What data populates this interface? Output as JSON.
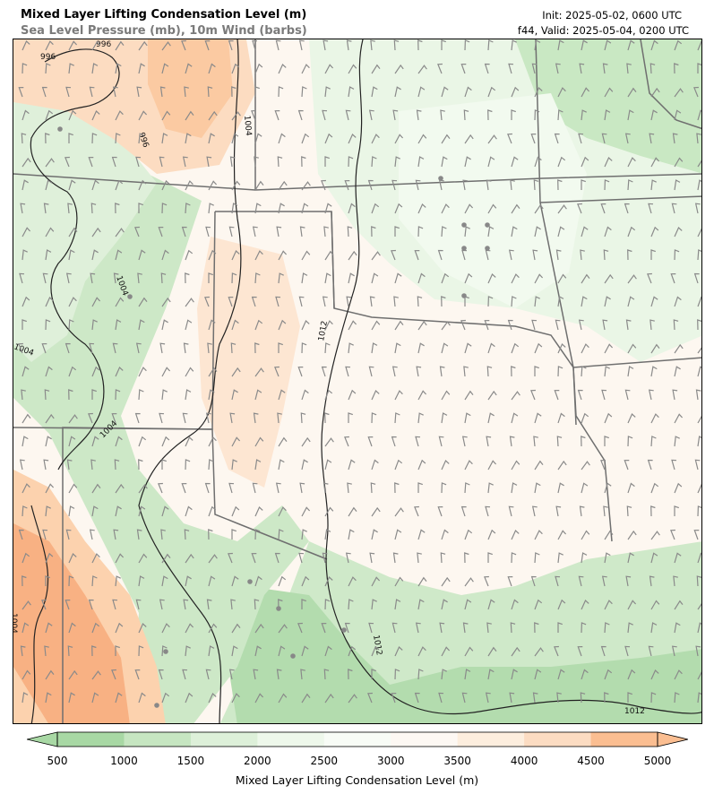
{
  "header": {
    "title": "Mixed Layer Lifting Condensation Level (m)",
    "subtitle": "Sea Level Pressure (mb), 10m Wind (barbs)",
    "init": "Init: 2025-05-02, 0600 UTC",
    "valid": "f44, Valid: 2025-05-04, 0200 UTC"
  },
  "map": {
    "field": "Mixed Layer Lifting Condensation Level",
    "units": "m",
    "isobar_labels": [
      "996",
      "996",
      "996",
      "1004",
      "1004",
      "1004",
      "1004",
      "1012",
      "1012",
      "1004",
      "1012"
    ],
    "colors": {
      "low_lcl": "#a9d9a8",
      "mid_lcl": "#f4faf1",
      "high_lcl": "#fbbf8f",
      "isobar": "#222222",
      "state_border": "#777777",
      "county_border": "#cccccc",
      "barb": "#888888"
    }
  },
  "colorbar": {
    "label": "Mixed Layer Lifting Condensation Level (m)",
    "ticks": [
      "500",
      "1000",
      "1500",
      "2000",
      "2500",
      "3000",
      "3500",
      "4000",
      "4500",
      "5000"
    ],
    "colors": [
      "#a8d8a4",
      "#c6e6c1",
      "#ddf0d9",
      "#eef8eb",
      "#f8fcf6",
      "#fdf8f3",
      "#fdeede",
      "#fcdcc2",
      "#fbbe91"
    ],
    "extend": "both"
  }
}
